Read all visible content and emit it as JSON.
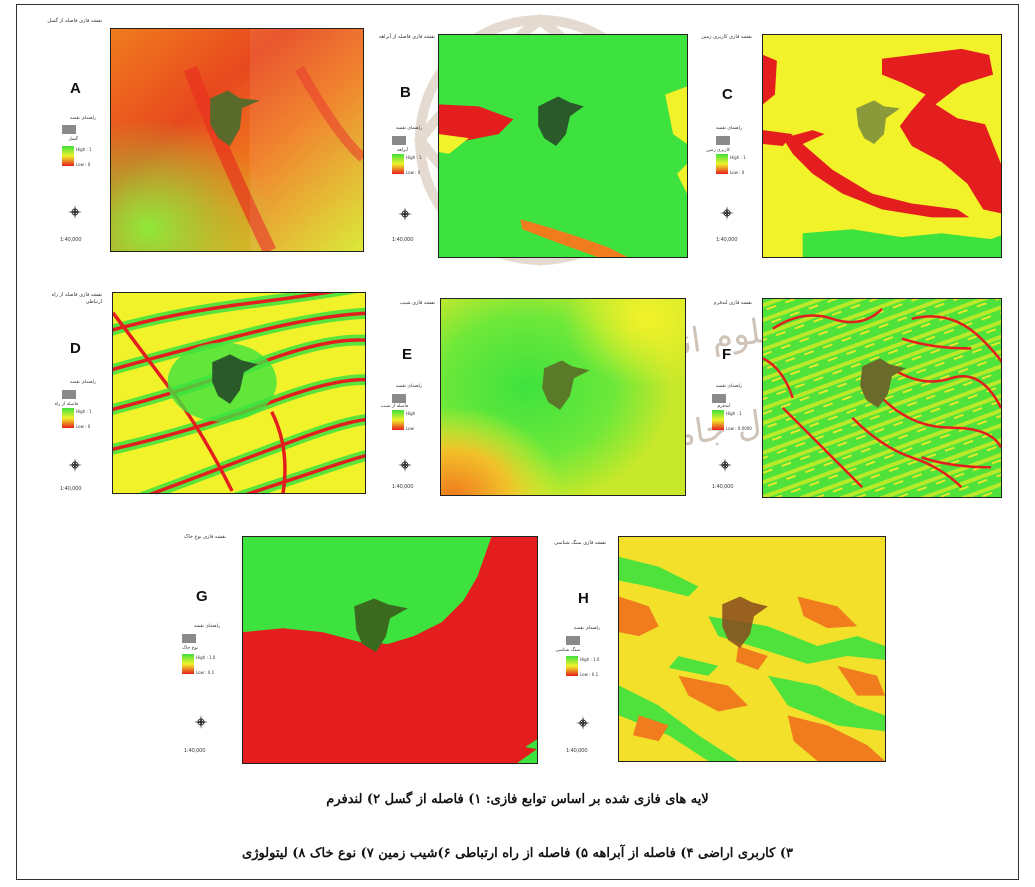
{
  "panels": [
    {
      "letter": "A",
      "title": "نقشه فازی فاصله از گسل",
      "legend_title": "راهنمای نقشه",
      "legend_sub": "گسل",
      "legend_high": "High : 1",
      "legend_low": "Low : 0",
      "scale": "1:40,000"
    },
    {
      "letter": "B",
      "title": "نقشه فازی فاصله از آبراهه",
      "legend_title": "راهنمای نقشه",
      "legend_sub": "آبراهه",
      "legend_high": "High : 1",
      "legend_low": "Low : 0",
      "scale": "1:40,000"
    },
    {
      "letter": "C",
      "title": "نقشه فازی کاربری زمین",
      "legend_title": "راهنمای نقشه",
      "legend_sub": "کاربری زمین",
      "legend_high": "High : 1",
      "legend_low": "Low : 0",
      "scale": "1:40,000"
    },
    {
      "letter": "D",
      "title": "نقشه فازی فاصله از راه ارتباطی",
      "legend_title": "راهنمای نقشه",
      "legend_sub": "فاصله از راه",
      "legend_high": "High : 1",
      "legend_low": "Low : 0",
      "scale": "1:40,000"
    },
    {
      "letter": "E",
      "title": "نقشه فازی شیب",
      "legend_title": "راهنمای نقشه",
      "legend_sub": "فاصله از شیب",
      "legend_high": "High",
      "legend_low": "Low",
      "scale": "1:40,000"
    },
    {
      "letter": "F",
      "title": "نقشه فازی لندفرم",
      "legend_title": "راهنمای نقشه",
      "legend_sub": "لندفرم",
      "legend_high": "High : 1",
      "legend_low": "Low : 0.0000",
      "scale": "1:40,000"
    },
    {
      "letter": "G",
      "title": "نقشه فازی نوع خاک",
      "legend_title": "راهنمای نقشه",
      "legend_sub": "نوع خاک",
      "legend_high": "High : 1.0",
      "legend_low": "Low : 0.1",
      "scale": "1:40,000"
    },
    {
      "letter": "H",
      "title": "نقشه فازی سنگ شناسی",
      "legend_title": "راهنمای نقشه",
      "legend_sub": "سنگ شناسی",
      "legend_high": "High : 1.0",
      "legend_low": "Low : 0.1",
      "scale": "1:40,000"
    }
  ],
  "caption_line1": "لایه های فازی شده بر اساس توابع فازی: ۱) فاصله از گسل ۲) لندفرم",
  "caption_line2": "۳) کاربری اراضی ۴) فاصله از آبراهه ۵) فاصله از راه ارتباطی ۶)شیب زمین ۷) نوع خاک ۸) لیتولوژی",
  "colors": {
    "red": "#e41e1e",
    "orange": "#f07c1e",
    "yellow": "#f2f22a",
    "green": "#3ee23e",
    "city": "#5a6a2a"
  }
}
